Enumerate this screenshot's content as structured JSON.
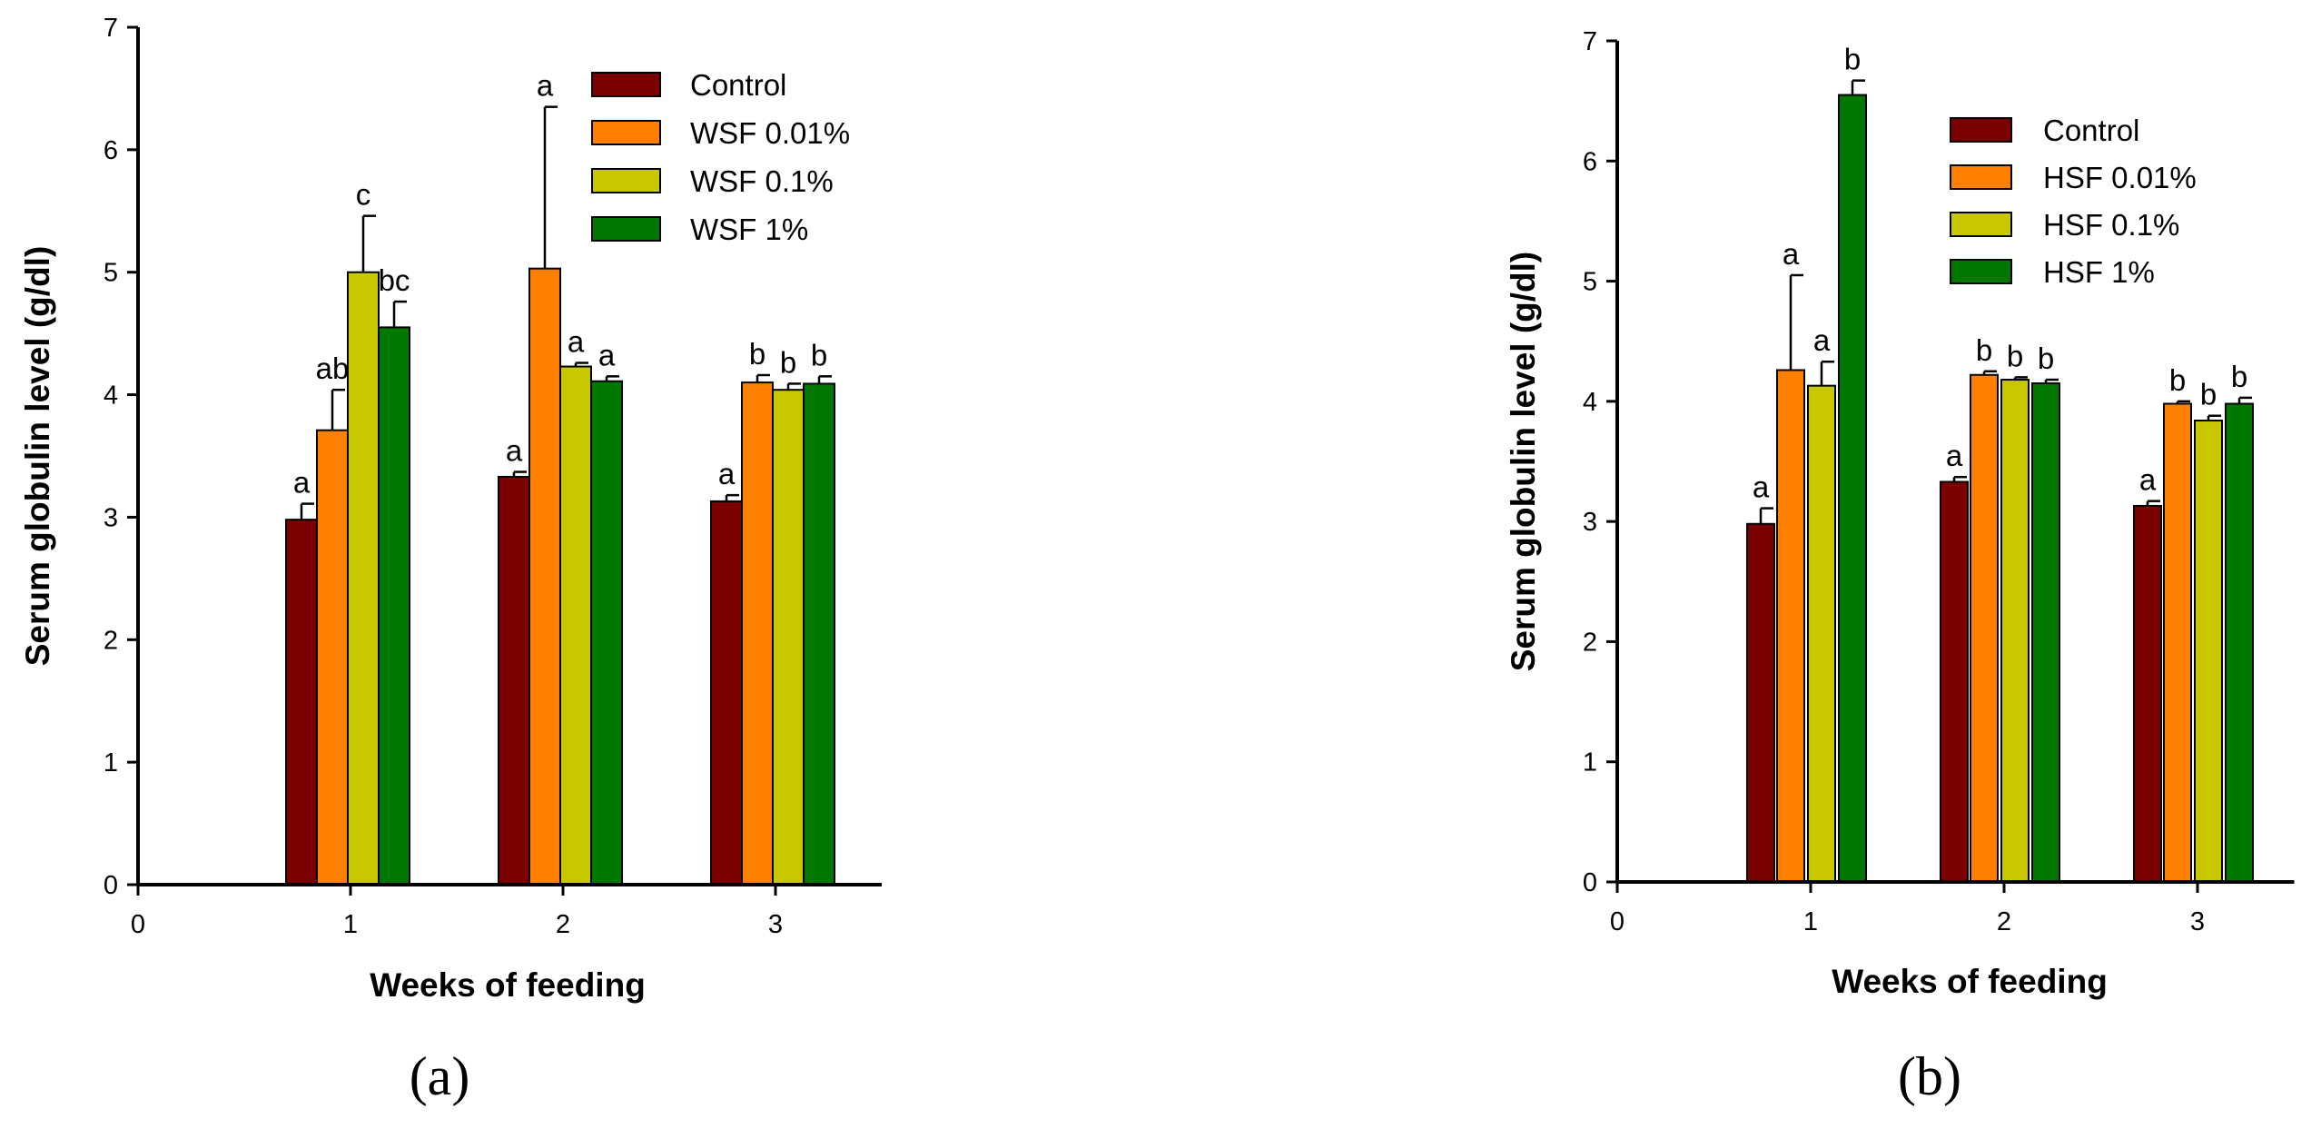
{
  "chart_data": [
    {
      "type": "bar",
      "panel_label": "(a)",
      "xlabel": "Weeks of feeding",
      "ylabel": "Serum globulin level (g/dl)",
      "ylim": [
        0,
        7
      ],
      "yticks": [
        "0",
        "1",
        "2",
        "3",
        "4",
        "5",
        "6",
        "7"
      ],
      "xlim": [
        0,
        3.5
      ],
      "xticks": [
        "0",
        "1",
        "2",
        "3"
      ],
      "categories": [
        1,
        2,
        3
      ],
      "legend_position": "top-right",
      "series": [
        {
          "name": "Control",
          "color": "#7B0000",
          "values": [
            2.98,
            3.33,
            3.13
          ],
          "errors": [
            0.13,
            0.04,
            0.05
          ],
          "sig": [
            "a",
            "a",
            "a"
          ]
        },
        {
          "name": "WSF 0.01%",
          "color": "#FF8000",
          "values": [
            3.71,
            5.03,
            4.1
          ],
          "errors": [
            0.33,
            1.32,
            0.06
          ],
          "sig": [
            "ab",
            "a",
            "b"
          ]
        },
        {
          "name": "WSF 0.1%",
          "color": "#C8C800",
          "values": [
            5.0,
            4.23,
            4.04
          ],
          "errors": [
            0.46,
            0.03,
            0.05
          ],
          "sig": [
            "c",
            "a",
            "b"
          ]
        },
        {
          "name": "WSF 1%",
          "color": "#007800",
          "values": [
            4.55,
            4.11,
            4.09
          ],
          "errors": [
            0.21,
            0.04,
            0.06
          ],
          "sig": [
            "bc",
            "a",
            "b"
          ]
        }
      ]
    },
    {
      "type": "bar",
      "panel_label": "(b)",
      "xlabel": "Weeks of feeding",
      "ylabel": "Serum globulin level (g/dl)",
      "ylim": [
        0,
        7
      ],
      "yticks": [
        "0",
        "1",
        "2",
        "3",
        "4",
        "5",
        "6",
        "7"
      ],
      "xlim": [
        0,
        3.5
      ],
      "xticks": [
        "0",
        "1",
        "2",
        "3"
      ],
      "categories": [
        1,
        2,
        3
      ],
      "legend_position": "top-right",
      "series": [
        {
          "name": "Control",
          "color": "#7B0000",
          "values": [
            2.98,
            3.33,
            3.13
          ],
          "errors": [
            0.13,
            0.04,
            0.04
          ],
          "sig": [
            "a",
            "a",
            "a"
          ]
        },
        {
          "name": "HSF 0.01%",
          "color": "#FF8000",
          "values": [
            4.26,
            4.22,
            3.98
          ],
          "errors": [
            0.79,
            0.03,
            0.02
          ],
          "sig": [
            "a",
            "b",
            "b"
          ]
        },
        {
          "name": "HSF 0.1%",
          "color": "#C8C800",
          "values": [
            4.13,
            4.18,
            3.84
          ],
          "errors": [
            0.2,
            0.02,
            0.04
          ],
          "sig": [
            "a",
            "b",
            "b"
          ]
        },
        {
          "name": "HSF 1%",
          "color": "#007800",
          "values": [
            6.55,
            4.15,
            3.98
          ],
          "errors": [
            0.12,
            0.03,
            0.05
          ],
          "sig": [
            "b",
            "b",
            "b"
          ]
        }
      ]
    }
  ]
}
